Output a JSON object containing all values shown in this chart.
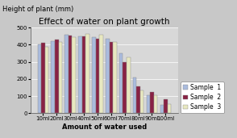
{
  "title": "Effect of water on plant growth",
  "xlabel": "Amount of water used",
  "ylabel": "Height of plant (mm)",
  "categories": [
    "10ml",
    "20ml",
    "30ml",
    "40ml",
    "50ml",
    "60ml",
    "70ml",
    "80ml",
    "90ml",
    "100ml"
  ],
  "sample1": [
    400,
    420,
    460,
    450,
    445,
    435,
    350,
    210,
    105,
    50
  ],
  "sample2": [
    410,
    430,
    455,
    450,
    435,
    415,
    300,
    155,
    125,
    80
  ],
  "sample3": [
    390,
    415,
    445,
    465,
    460,
    415,
    325,
    135,
    105,
    55
  ],
  "colors": [
    "#aabbdd",
    "#882244",
    "#e8e8c0"
  ],
  "legend_labels": [
    "Sample  1",
    "Sample  2",
    "Sample  3"
  ],
  "ylim": [
    0,
    500
  ],
  "yticks": [
    0,
    100,
    200,
    300,
    400,
    500
  ],
  "bg_color": "#c8c8c8",
  "plot_bg_color": "#d8d8d8",
  "title_fontsize": 7.5,
  "label_fontsize": 6.0,
  "tick_fontsize": 5.0,
  "legend_fontsize": 5.5
}
